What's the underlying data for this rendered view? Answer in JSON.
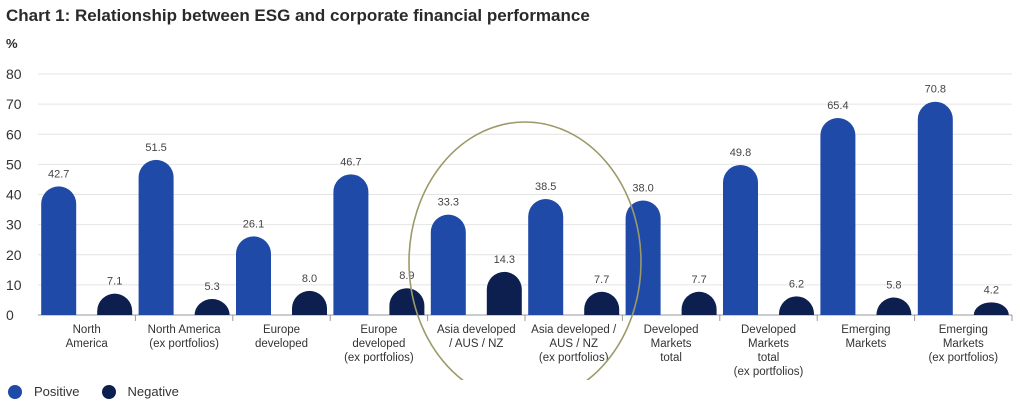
{
  "chart_data": {
    "type": "bar",
    "title": "Chart 1: Relationship between ESG and corporate financial performance",
    "ylabel": "%",
    "ylim": [
      0,
      80
    ],
    "yticks": [
      0,
      10,
      20,
      30,
      40,
      50,
      60,
      70,
      80
    ],
    "grid": true,
    "legend_position": "bottom-left",
    "categories": [
      [
        "North",
        "America"
      ],
      [
        "North America",
        "(ex portfolios)"
      ],
      [
        "Europe",
        "developed"
      ],
      [
        "Europe",
        "developed",
        "(ex portfolios)"
      ],
      [
        "Asia developed",
        "/ AUS / NZ"
      ],
      [
        "Asia developed /",
        "AUS / NZ",
        "(ex portfolios)"
      ],
      [
        "Developed",
        "Markets",
        "total"
      ],
      [
        "Developed",
        "Markets",
        "total",
        "(ex portfolios)"
      ],
      [
        "Emerging",
        "Markets"
      ],
      [
        "Emerging",
        "Markets",
        "(ex portfolios)"
      ]
    ],
    "series": [
      {
        "name": "Positive",
        "color": "#1f4aa8",
        "values": [
          42.7,
          51.5,
          26.1,
          46.7,
          33.3,
          38.5,
          38.0,
          49.8,
          65.4,
          70.8
        ],
        "labels": [
          "42.7",
          "51.5",
          "26.1",
          "46.7",
          "33.3",
          "38.5",
          "38.0",
          "49.8",
          "65.4",
          "70.8"
        ]
      },
      {
        "name": "Negative",
        "color": "#0c1f4f",
        "values": [
          7.1,
          5.3,
          8.0,
          8.9,
          14.3,
          7.7,
          7.7,
          6.2,
          5.8,
          4.2
        ],
        "labels": [
          "7.1",
          "5.3",
          "8.0",
          "8.9",
          "14.3",
          "7.7",
          "7.7",
          "6.2",
          "5.8",
          "4.2"
        ]
      }
    ],
    "annotation": {
      "type": "ellipse",
      "color": "#9c9a6a",
      "categories": [
        4,
        5
      ]
    }
  }
}
